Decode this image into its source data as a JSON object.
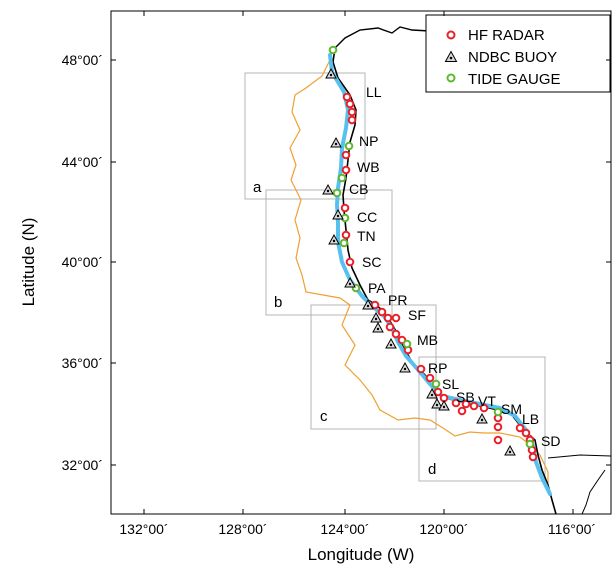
{
  "map": {
    "xlabel": "Longitude (W)",
    "ylabel": "Latitude (N)",
    "x_ticks": [
      "132°00´",
      "128°00´",
      "124°00´",
      "120°00´",
      "116°00´"
    ],
    "y_ticks": [
      "48°00´",
      "44°00´",
      "40°00´",
      "36°00´",
      "32°00´"
    ],
    "legend": [
      "HF RADAR",
      "NDBC BUOY",
      "TIDE GAUGE"
    ],
    "colors": {
      "hf_radar": "#e8202a",
      "tide_gauge": "#5cb82e",
      "buoy": "#000000",
      "coast_current": "#58c0ee",
      "offshore_contour": "#f0a030",
      "box": "#b4b4b4"
    },
    "site_labels": [
      "LL",
      "NP",
      "WB",
      "CB",
      "CC",
      "TN",
      "SC",
      "PA",
      "PR",
      "SF",
      "MB",
      "RP",
      "SL",
      "SB",
      "VT",
      "SM",
      "LB",
      "SD"
    ],
    "region_labels": [
      "a",
      "b",
      "c",
      "d"
    ]
  }
}
